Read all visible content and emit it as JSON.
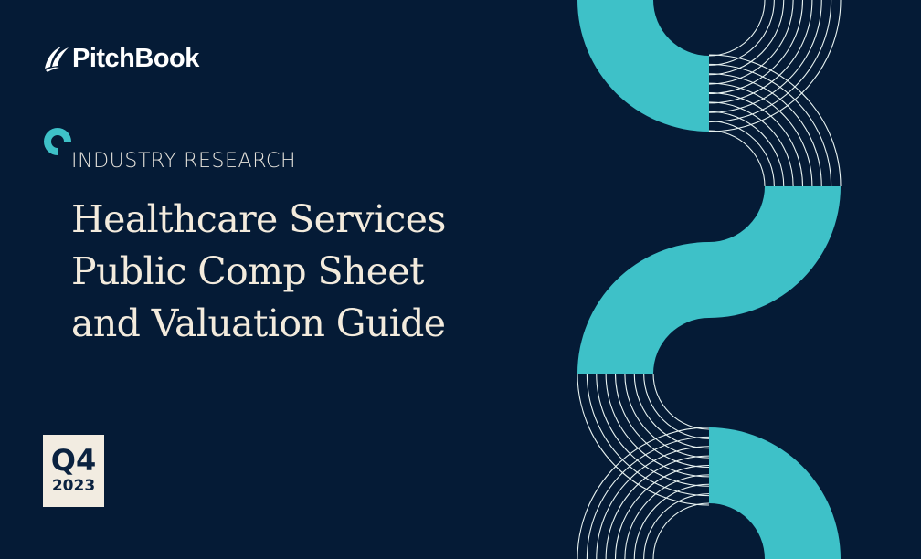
{
  "brand": {
    "name": "PitchBook",
    "logo_icon": "sails-icon"
  },
  "kicker": "INDUSTRY RESEARCH",
  "title_lines": [
    "Healthcare Services",
    "Public Comp Sheet",
    "and Valuation Guide"
  ],
  "badge": {
    "quarter": "Q4",
    "year": "2023"
  },
  "colors": {
    "background": "#051b36",
    "accent": "#3ec1c8",
    "cream": "#f3ebdd",
    "line": "#e8f3f2"
  }
}
